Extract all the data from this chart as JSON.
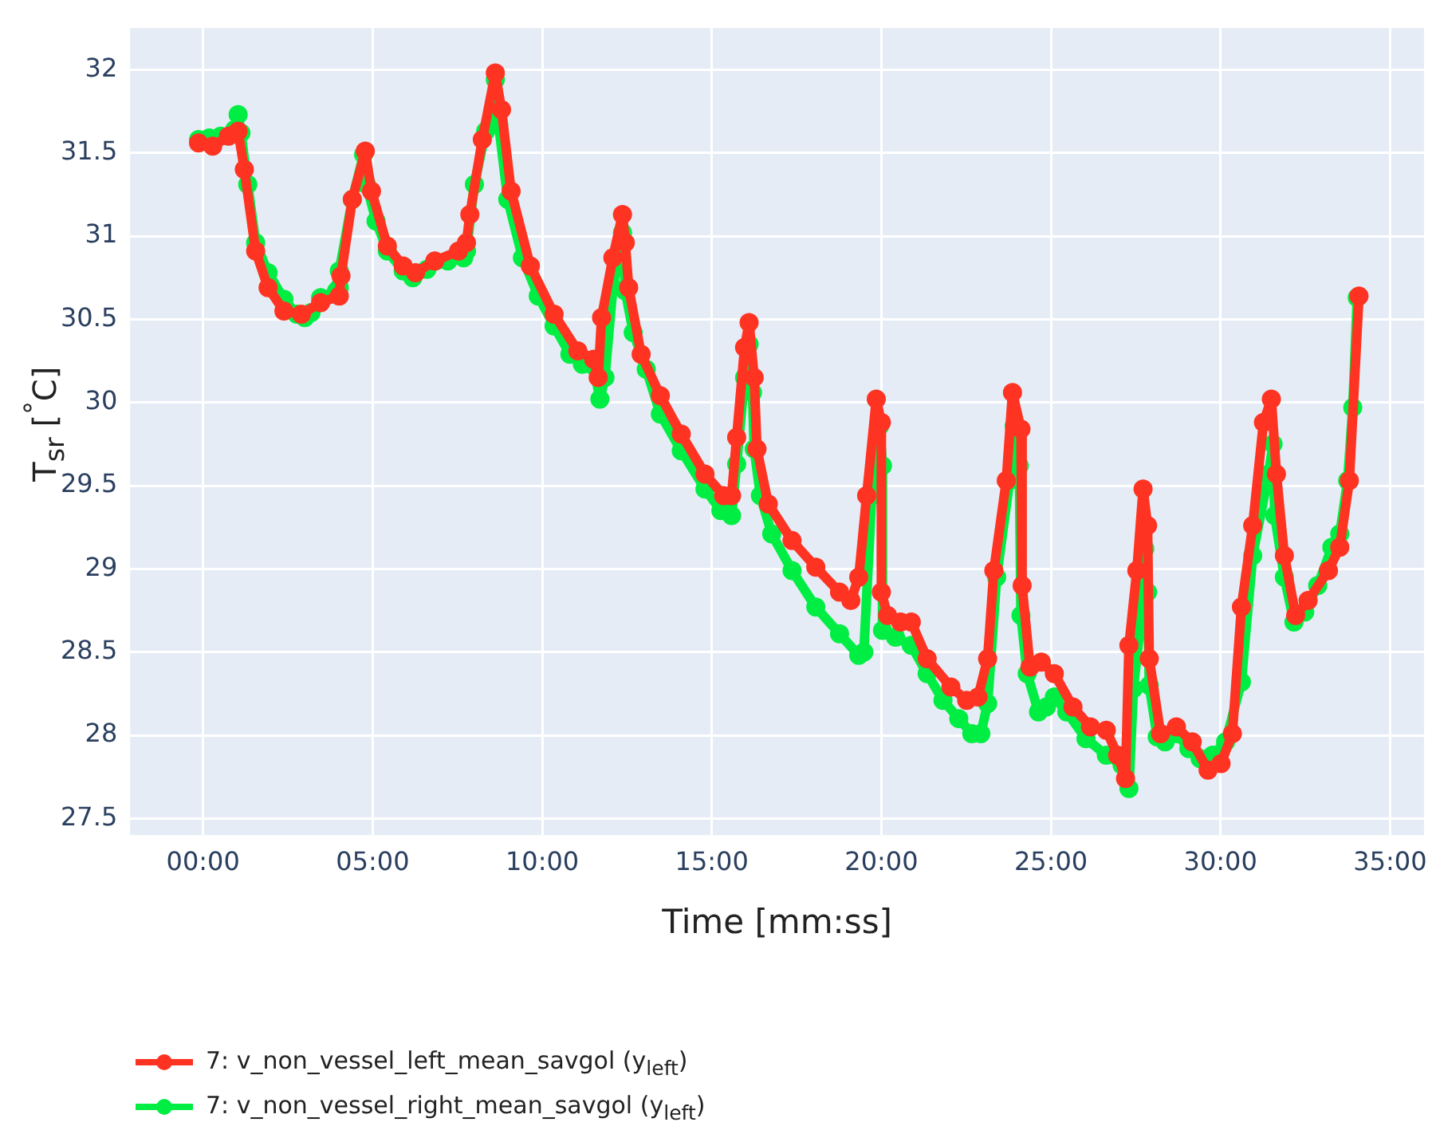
{
  "chart_data": {
    "type": "line",
    "xlabel": "Time [mm:ss]",
    "ylabel": "T$_{sr}$ [$^{°}$C]",
    "xlim": [
      -129,
      2160
    ],
    "ylim": [
      27.4,
      32.25
    ],
    "xticks": [
      {
        "value": 0,
        "label": "00:00"
      },
      {
        "value": 300,
        "label": "05:00"
      },
      {
        "value": 600,
        "label": "10:00"
      },
      {
        "value": 900,
        "label": "15:00"
      },
      {
        "value": 1200,
        "label": "20:00"
      },
      {
        "value": 1500,
        "label": "25:00"
      },
      {
        "value": 1800,
        "label": "30:00"
      },
      {
        "value": 2100,
        "label": "35:00"
      }
    ],
    "yticks": [
      27.5,
      28,
      28.5,
      29,
      29.5,
      30,
      30.5,
      31,
      31.5,
      32
    ],
    "grid": true,
    "legend": "bottom",
    "marker": "circle",
    "line_style": "solid",
    "series": [
      {
        "name": "7: v_non_vessel_left_mean_savgol (y$_{left}$)",
        "color": "#ff3322",
        "x": [
          -8,
          17,
          45,
          62,
          73,
          93,
          115,
          143,
          174,
          208,
          241,
          244,
          264,
          287,
          298,
          326,
          354,
          376,
          410,
          452,
          466,
          472,
          494,
          517,
          528,
          545,
          579,
          621,
          663,
          691,
          699,
          705,
          725,
          742,
          747,
          753,
          775,
          809,
          846,
          888,
          921,
          935,
          944,
          958,
          966,
          975,
          980,
          1000,
          1042,
          1084,
          1126,
          1146,
          1160,
          1174,
          1191,
          1200,
          1200,
          1211,
          1234,
          1253,
          1281,
          1323,
          1351,
          1371,
          1388,
          1399,
          1421,
          1432,
          1447,
          1449,
          1463,
          1483,
          1506,
          1539,
          1570,
          1598,
          1618,
          1632,
          1638,
          1652,
          1663,
          1671,
          1674,
          1694,
          1722,
          1750,
          1778,
          1801,
          1821,
          1837,
          1857,
          1876,
          1890,
          1899,
          1913,
          1933,
          1955,
          1991,
          2011,
          2028,
          2045
        ],
        "values": [
          31.56,
          31.54,
          31.6,
          31.63,
          31.4,
          30.91,
          30.69,
          30.55,
          30.53,
          30.6,
          30.64,
          30.76,
          31.22,
          31.51,
          31.27,
          30.94,
          30.82,
          30.78,
          30.85,
          30.91,
          30.96,
          31.13,
          31.58,
          31.98,
          31.76,
          31.27,
          30.82,
          30.53,
          30.31,
          30.26,
          30.15,
          30.51,
          30.87,
          31.13,
          30.96,
          30.69,
          30.29,
          30.04,
          29.81,
          29.57,
          29.44,
          29.44,
          29.79,
          30.33,
          30.48,
          30.15,
          29.72,
          29.39,
          29.17,
          29.01,
          28.86,
          28.81,
          28.95,
          29.44,
          30.02,
          29.88,
          28.86,
          28.72,
          28.68,
          28.68,
          28.46,
          28.29,
          28.21,
          28.23,
          28.46,
          28.99,
          29.53,
          30.06,
          29.84,
          28.9,
          28.41,
          28.44,
          28.37,
          28.17,
          28.05,
          28.03,
          27.88,
          27.74,
          28.54,
          28.99,
          29.48,
          29.26,
          28.46,
          28.01,
          28.05,
          27.96,
          27.79,
          27.83,
          28.01,
          28.77,
          29.26,
          29.88,
          30.02,
          29.57,
          29.08,
          28.72,
          28.81,
          28.99,
          29.13,
          29.53,
          30.64
        ]
      },
      {
        "name": "7: v_non_vessel_right_mean_savgol (y$_{left}$)",
        "color": "#00ee44",
        "x": [
          -8,
          11,
          31,
          56,
          62,
          67,
          79,
          93,
          115,
          143,
          166,
          180,
          191,
          208,
          236,
          241,
          241,
          264,
          284,
          289,
          306,
          326,
          354,
          371,
          396,
          433,
          461,
          466,
          480,
          500,
          517,
          523,
          539,
          565,
          593,
          621,
          649,
          671,
          691,
          702,
          711,
          725,
          742,
          747,
          761,
          784,
          809,
          846,
          888,
          916,
          935,
          944,
          958,
          966,
          972,
          975,
          986,
          1006,
          1042,
          1084,
          1126,
          1160,
          1169,
          1183,
          1197,
          1202,
          1202,
          1225,
          1253,
          1281,
          1309,
          1337,
          1360,
          1376,
          1388,
          1404,
          1427,
          1435,
          1444,
          1447,
          1458,
          1478,
          1492,
          1506,
          1528,
          1562,
          1598,
          1626,
          1638,
          1646,
          1660,
          1666,
          1671,
          1674,
          1688,
          1702,
          1722,
          1744,
          1764,
          1786,
          1809,
          1837,
          1857,
          1885,
          1893,
          1896,
          1913,
          1930,
          1949,
          1972,
          1997,
          2011,
          2025,
          2034,
          2042
        ],
        "values": [
          31.58,
          31.59,
          31.6,
          31.64,
          31.73,
          31.62,
          31.31,
          30.96,
          30.78,
          30.62,
          30.53,
          30.51,
          30.54,
          30.63,
          30.67,
          30.69,
          30.79,
          31.22,
          31.49,
          31.31,
          31.09,
          30.91,
          30.79,
          30.75,
          30.8,
          30.85,
          30.87,
          30.91,
          31.31,
          31.63,
          31.94,
          31.67,
          31.22,
          30.87,
          30.64,
          30.46,
          30.29,
          30.23,
          30.22,
          30.02,
          30.15,
          30.69,
          31.02,
          30.67,
          30.42,
          30.2,
          29.93,
          29.71,
          29.48,
          29.35,
          29.32,
          29.63,
          30.15,
          30.35,
          30.06,
          29.72,
          29.44,
          29.21,
          28.99,
          28.77,
          28.61,
          28.48,
          28.5,
          29.44,
          29.86,
          29.62,
          28.63,
          28.59,
          28.54,
          28.37,
          28.21,
          28.1,
          28.01,
          28.01,
          28.19,
          28.95,
          29.53,
          29.86,
          29.62,
          28.72,
          28.37,
          28.14,
          28.17,
          28.23,
          28.14,
          27.98,
          27.88,
          27.82,
          27.68,
          28.28,
          28.72,
          29.12,
          28.86,
          28.3,
          27.99,
          27.96,
          28.01,
          27.92,
          27.86,
          27.88,
          27.96,
          28.32,
          29.08,
          29.57,
          29.75,
          29.32,
          28.95,
          28.68,
          28.74,
          28.9,
          29.13,
          29.21,
          29.53,
          29.97,
          30.63
        ]
      }
    ]
  }
}
